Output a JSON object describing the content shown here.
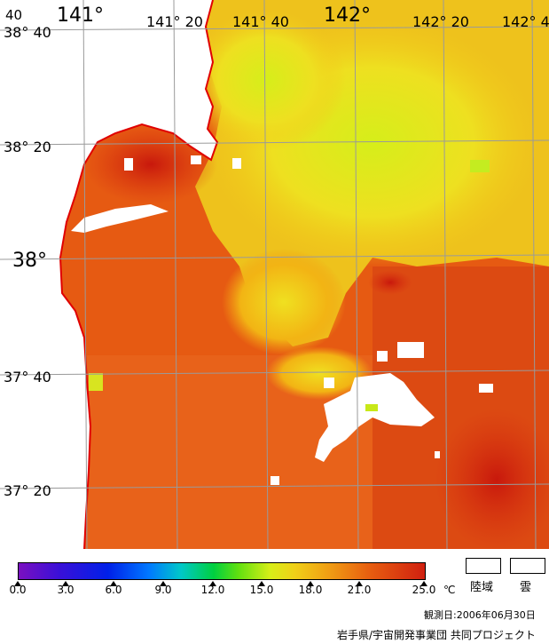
{
  "map": {
    "lon_labels": [
      "141°",
      "141° 20",
      "141° 40",
      "142°",
      "142° 20",
      "142° 4"
    ],
    "lat_labels": [
      "38° 40",
      "38° 20",
      "38°",
      "37° 40",
      "37° 20"
    ],
    "corner_label": "40",
    "colors": {
      "land": "#ffffff",
      "coastline": "#e00000",
      "grid": "#9a9a9a",
      "sea_warm": "#e85010",
      "sea_hot": "#cc2010",
      "sea_mid": "#f08a10",
      "sea_cool": "#f0d018",
      "sea_cold": "#d8ee18",
      "cloud": "#ffffff"
    }
  },
  "legend": {
    "ticks": [
      "0.0",
      "3.0",
      "6.0",
      "9.0",
      "12.0",
      "15.0",
      "18.0",
      "21.0",
      "25.0"
    ],
    "unit": "℃",
    "land_label": "陸域",
    "cloud_label": "雲"
  },
  "observation_date": "観測日:2006年06月30日",
  "credit": "岩手県/宇宙開発事業団 共同プロジェクト"
}
